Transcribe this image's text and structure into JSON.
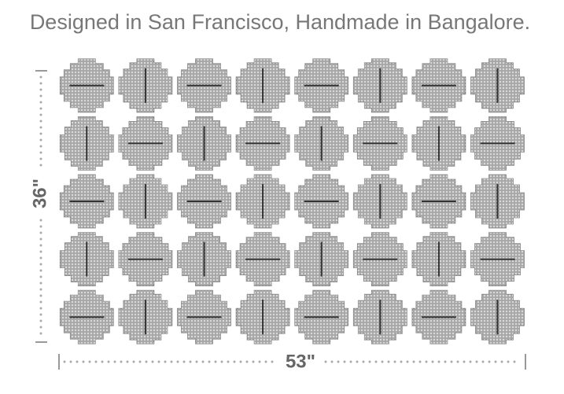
{
  "caption": "Designed in San Francisco, Handmade in Bangalore.",
  "dimensions": {
    "height": "36\"",
    "width": "53\""
  }
}
